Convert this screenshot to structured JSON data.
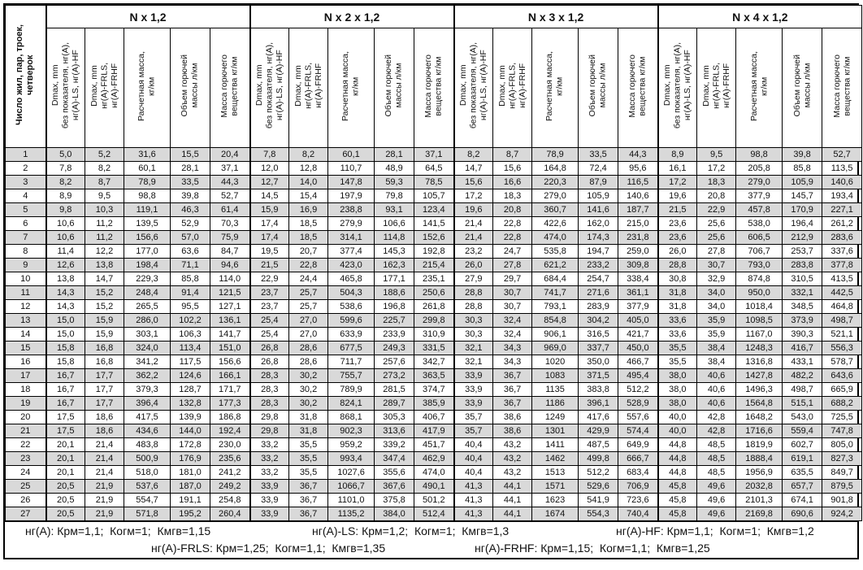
{
  "table": {
    "row_header": "Число жил, пар, троек,\nчетверок",
    "groups": [
      "N x 1,2",
      "N x 2 x 1,2",
      "N x 3 x 1,2",
      "N x 4 x 1,2"
    ],
    "subheaders": [
      "Dmax, mm\nбез показателя, нг(А),\nнг(А)-LS, нг(А)-HF",
      "Dmax, mm\nнг(А)-FRLS,\nнг(А)-FRHF",
      "Расчетная масса,\nкг/км",
      "Объем горючей\nмассы л/км",
      "Масса горючего\nвещества кг/км"
    ],
    "rows": [
      [
        "1",
        "5,0",
        "5,2",
        "31,6",
        "15,5",
        "20,4",
        "7,8",
        "8,2",
        "60,1",
        "28,1",
        "37,1",
        "8,2",
        "8,7",
        "78,9",
        "33,5",
        "44,3",
        "8,9",
        "9,5",
        "98,8",
        "39,8",
        "52,7"
      ],
      [
        "2",
        "7,8",
        "8,2",
        "60,1",
        "28,1",
        "37,1",
        "12,0",
        "12,8",
        "110,7",
        "48,9",
        "64,5",
        "14,7",
        "15,6",
        "164,8",
        "72,4",
        "95,6",
        "16,1",
        "17,2",
        "205,8",
        "85,8",
        "113,5"
      ],
      [
        "3",
        "8,2",
        "8,7",
        "78,9",
        "33,5",
        "44,3",
        "12,7",
        "14,0",
        "147,8",
        "59,3",
        "78,5",
        "15,6",
        "16,6",
        "220,3",
        "87,9",
        "116,5",
        "17,2",
        "18,3",
        "279,0",
        "105,9",
        "140,6"
      ],
      [
        "4",
        "8,9",
        "9,5",
        "98,8",
        "39,8",
        "52,7",
        "14,5",
        "15,4",
        "197,9",
        "79,8",
        "105,7",
        "17,2",
        "18,3",
        "279,0",
        "105,9",
        "140,6",
        "19,6",
        "20,8",
        "377,9",
        "145,7",
        "193,4"
      ],
      [
        "5",
        "9,8",
        "10,3",
        "119,1",
        "46,3",
        "61,4",
        "15,9",
        "16,9",
        "238,8",
        "93,1",
        "123,4",
        "19,6",
        "20,8",
        "360,7",
        "141,6",
        "187,7",
        "21,5",
        "22,9",
        "457,8",
        "170,9",
        "227,1"
      ],
      [
        "6",
        "10,6",
        "11,2",
        "139,5",
        "52,9",
        "70,3",
        "17,4",
        "18,5",
        "279,9",
        "106,6",
        "141,5",
        "21,4",
        "22,8",
        "422,6",
        "162,0",
        "215,0",
        "23,6",
        "25,6",
        "538,0",
        "196,4",
        "261,2"
      ],
      [
        "7",
        "10,6",
        "11,2",
        "156,6",
        "57,0",
        "75,9",
        "17,4",
        "18,5",
        "314,1",
        "114,8",
        "152,6",
        "21,4",
        "22,8",
        "474,0",
        "174,3",
        "231,8",
        "23,6",
        "25,6",
        "606,5",
        "212,9",
        "283,6"
      ],
      [
        "8",
        "11,4",
        "12,2",
        "177,0",
        "63,6",
        "84,7",
        "19,5",
        "20,7",
        "377,4",
        "145,3",
        "192,8",
        "23,2",
        "24,7",
        "535,8",
        "194,7",
        "259,0",
        "26,0",
        "27,8",
        "706,7",
        "253,7",
        "337,6"
      ],
      [
        "9",
        "12,6",
        "13,8",
        "198,4",
        "71,1",
        "94,6",
        "21,5",
        "22,8",
        "423,0",
        "162,3",
        "215,4",
        "26,0",
        "27,8",
        "621,2",
        "233,2",
        "309,8",
        "28,8",
        "30,7",
        "793,0",
        "283,8",
        "377,8"
      ],
      [
        "10",
        "13,8",
        "14,7",
        "229,3",
        "85,8",
        "114,0",
        "22,9",
        "24,4",
        "465,8",
        "177,1",
        "235,1",
        "27,9",
        "29,7",
        "684,4",
        "254,7",
        "338,4",
        "30,8",
        "32,9",
        "874,8",
        "310,5",
        "413,5"
      ],
      [
        "11",
        "14,3",
        "15,2",
        "248,4",
        "91,4",
        "121,5",
        "23,7",
        "25,7",
        "504,3",
        "188,6",
        "250,6",
        "28,8",
        "30,7",
        "741,7",
        "271,6",
        "361,1",
        "31,8",
        "34,0",
        "950,0",
        "332,1",
        "442,5"
      ],
      [
        "12",
        "14,3",
        "15,2",
        "265,5",
        "95,5",
        "127,1",
        "23,7",
        "25,7",
        "538,6",
        "196,8",
        "261,8",
        "28,8",
        "30,7",
        "793,1",
        "283,9",
        "377,9",
        "31,8",
        "34,0",
        "1018,4",
        "348,5",
        "464,8"
      ],
      [
        "13",
        "15,0",
        "15,9",
        "286,0",
        "102,2",
        "136,1",
        "25,4",
        "27,0",
        "599,6",
        "225,7",
        "299,8",
        "30,3",
        "32,4",
        "854,8",
        "304,2",
        "405,0",
        "33,6",
        "35,9",
        "1098,5",
        "373,9",
        "498,7"
      ],
      [
        "14",
        "15,0",
        "15,9",
        "303,1",
        "106,3",
        "141,7",
        "25,4",
        "27,0",
        "633,9",
        "233,9",
        "310,9",
        "30,3",
        "32,4",
        "906,1",
        "316,5",
        "421,7",
        "33,6",
        "35,9",
        "1167,0",
        "390,3",
        "521,1"
      ],
      [
        "15",
        "15,8",
        "16,8",
        "324,0",
        "113,4",
        "151,0",
        "26,8",
        "28,6",
        "677,5",
        "249,3",
        "331,5",
        "32,1",
        "34,3",
        "969,0",
        "337,7",
        "450,0",
        "35,5",
        "38,4",
        "1248,3",
        "416,7",
        "556,3"
      ],
      [
        "16",
        "15,8",
        "16,8",
        "341,2",
        "117,5",
        "156,6",
        "26,8",
        "28,6",
        "711,7",
        "257,6",
        "342,7",
        "32,1",
        "34,3",
        "1020",
        "350,0",
        "466,7",
        "35,5",
        "38,4",
        "1316,8",
        "433,1",
        "578,7"
      ],
      [
        "17",
        "16,7",
        "17,7",
        "362,2",
        "124,6",
        "166,1",
        "28,3",
        "30,2",
        "755,7",
        "273,2",
        "363,5",
        "33,9",
        "36,7",
        "1083",
        "371,5",
        "495,4",
        "38,0",
        "40,6",
        "1427,8",
        "482,2",
        "643,6"
      ],
      [
        "18",
        "16,7",
        "17,7",
        "379,3",
        "128,7",
        "171,7",
        "28,3",
        "30,2",
        "789,9",
        "281,5",
        "374,7",
        "33,9",
        "36,7",
        "1135",
        "383,8",
        "512,2",
        "38,0",
        "40,6",
        "1496,3",
        "498,7",
        "665,9"
      ],
      [
        "19",
        "16,7",
        "17,7",
        "396,4",
        "132,8",
        "177,3",
        "28,3",
        "30,2",
        "824,1",
        "289,7",
        "385,9",
        "33,9",
        "36,7",
        "1186",
        "396,1",
        "528,9",
        "38,0",
        "40,6",
        "1564,8",
        "515,1",
        "688,2"
      ],
      [
        "20",
        "17,5",
        "18,6",
        "417,5",
        "139,9",
        "186,8",
        "29,8",
        "31,8",
        "868,1",
        "305,3",
        "406,7",
        "35,7",
        "38,6",
        "1249",
        "417,6",
        "557,6",
        "40,0",
        "42,8",
        "1648,2",
        "543,0",
        "725,5"
      ],
      [
        "21",
        "17,5",
        "18,6",
        "434,6",
        "144,0",
        "192,4",
        "29,8",
        "31,8",
        "902,3",
        "313,6",
        "417,9",
        "35,7",
        "38,6",
        "1301",
        "429,9",
        "574,4",
        "40,0",
        "42,8",
        "1716,6",
        "559,4",
        "747,8"
      ],
      [
        "22",
        "20,1",
        "21,4",
        "483,8",
        "172,8",
        "230,0",
        "33,2",
        "35,5",
        "959,2",
        "339,2",
        "451,7",
        "40,4",
        "43,2",
        "1411",
        "487,5",
        "649,9",
        "44,8",
        "48,5",
        "1819,9",
        "602,7",
        "805,0"
      ],
      [
        "23",
        "20,1",
        "21,4",
        "500,9",
        "176,9",
        "235,6",
        "33,2",
        "35,5",
        "993,4",
        "347,4",
        "462,9",
        "40,4",
        "43,2",
        "1462",
        "499,8",
        "666,7",
        "44,8",
        "48,5",
        "1888,4",
        "619,1",
        "827,3"
      ],
      [
        "24",
        "20,1",
        "21,4",
        "518,0",
        "181,0",
        "241,2",
        "33,2",
        "35,5",
        "1027,6",
        "355,6",
        "474,0",
        "40,4",
        "43,2",
        "1513",
        "512,2",
        "683,4",
        "44,8",
        "48,5",
        "1956,9",
        "635,5",
        "849,7"
      ],
      [
        "25",
        "20,5",
        "21,9",
        "537,6",
        "187,0",
        "249,2",
        "33,9",
        "36,7",
        "1066,7",
        "367,6",
        "490,1",
        "41,3",
        "44,1",
        "1571",
        "529,6",
        "706,9",
        "45,8",
        "49,6",
        "2032,8",
        "657,7",
        "879,5"
      ],
      [
        "26",
        "20,5",
        "21,9",
        "554,7",
        "191,1",
        "254,8",
        "33,9",
        "36,7",
        "1101,0",
        "375,8",
        "501,2",
        "41,3",
        "44,1",
        "1623",
        "541,9",
        "723,6",
        "45,8",
        "49,6",
        "2101,3",
        "674,1",
        "901,8"
      ],
      [
        "27",
        "20,5",
        "21,9",
        "571,8",
        "195,2",
        "260,4",
        "33,9",
        "36,7",
        "1135,2",
        "384,0",
        "512,4",
        "41,3",
        "44,1",
        "1674",
        "554,3",
        "740,4",
        "45,8",
        "49,6",
        "2169,8",
        "690,6",
        "924,2"
      ]
    ]
  },
  "footer": {
    "notes": [
      "нг(А): Крм=1,1;  Когм=1;  Кмгв=1,15",
      "нг(А)-LS: Крм=1,2;  Когм=1;  Кмгв=1,3",
      "нг(А)-HF: Крм=1,1;  Когм=1;  Кмгв=1,2",
      "нг(А)-FRLS: Крм=1,25;  Когм=1,1;  Кмгв=1,35",
      "нг(А)-FRHF: Крм=1,15;  Когм=1,1;  Кмгв=1,25"
    ]
  },
  "colors": {
    "stripe": "#d9d9d9",
    "border": "#000000"
  }
}
